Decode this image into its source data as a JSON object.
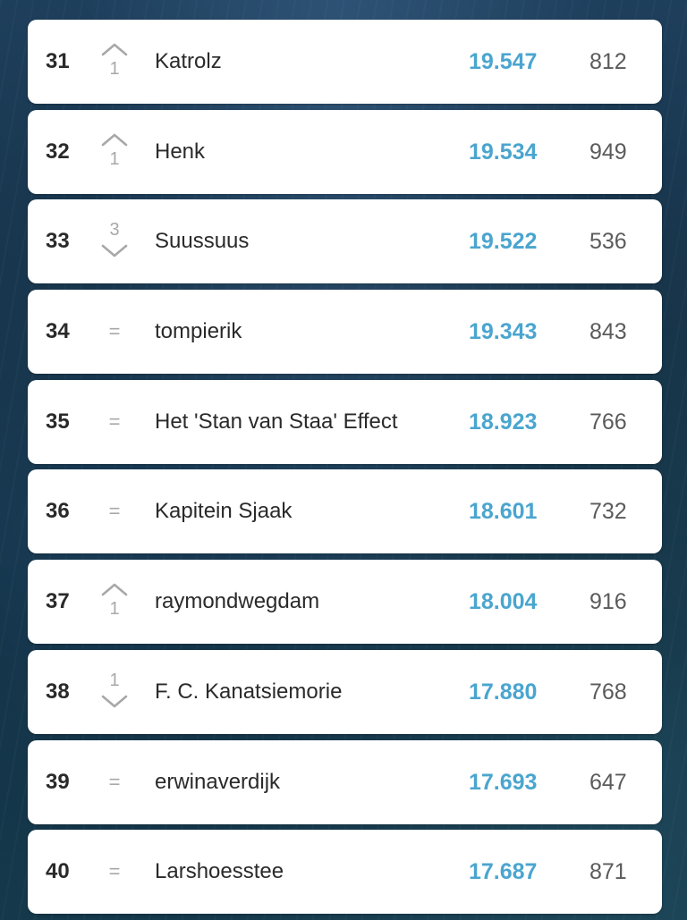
{
  "standings": [
    {
      "rank": "31",
      "change_direction": "up",
      "change": "1",
      "name": "Katrolz",
      "points": "19.547",
      "value": "812"
    },
    {
      "rank": "32",
      "change_direction": "up",
      "change": "1",
      "name": "Henk",
      "points": "19.534",
      "value": "949"
    },
    {
      "rank": "33",
      "change_direction": "down",
      "change": "3",
      "name": "Suussuus",
      "points": "19.522",
      "value": "536"
    },
    {
      "rank": "34",
      "change_direction": "same",
      "change": "=",
      "name": "tompierik",
      "points": "19.343",
      "value": "843"
    },
    {
      "rank": "35",
      "change_direction": "same",
      "change": "=",
      "name": "Het 'Stan van Staa' Effect",
      "points": "18.923",
      "value": "766"
    },
    {
      "rank": "36",
      "change_direction": "same",
      "change": "=",
      "name": "Kapitein Sjaak",
      "points": "18.601",
      "value": "732"
    },
    {
      "rank": "37",
      "change_direction": "up",
      "change": "1",
      "name": "raymondwegdam",
      "points": "18.004",
      "value": "916"
    },
    {
      "rank": "38",
      "change_direction": "down",
      "change": "1",
      "name": "F. C. Kanatsiemorie",
      "points": "17.880",
      "value": "768"
    },
    {
      "rank": "39",
      "change_direction": "same",
      "change": "=",
      "name": "erwinaverdijk",
      "points": "17.693",
      "value": "647"
    },
    {
      "rank": "40",
      "change_direction": "same",
      "change": "=",
      "name": "Larshoesstee",
      "points": "17.687",
      "value": "871"
    }
  ],
  "colors": {
    "points": "#4aa5cf",
    "change": "#a8a8a8",
    "text": "#2a2a2a"
  },
  "icons": {
    "up": "chevron-up-icon",
    "down": "chevron-down-icon",
    "same": "equals-icon"
  }
}
